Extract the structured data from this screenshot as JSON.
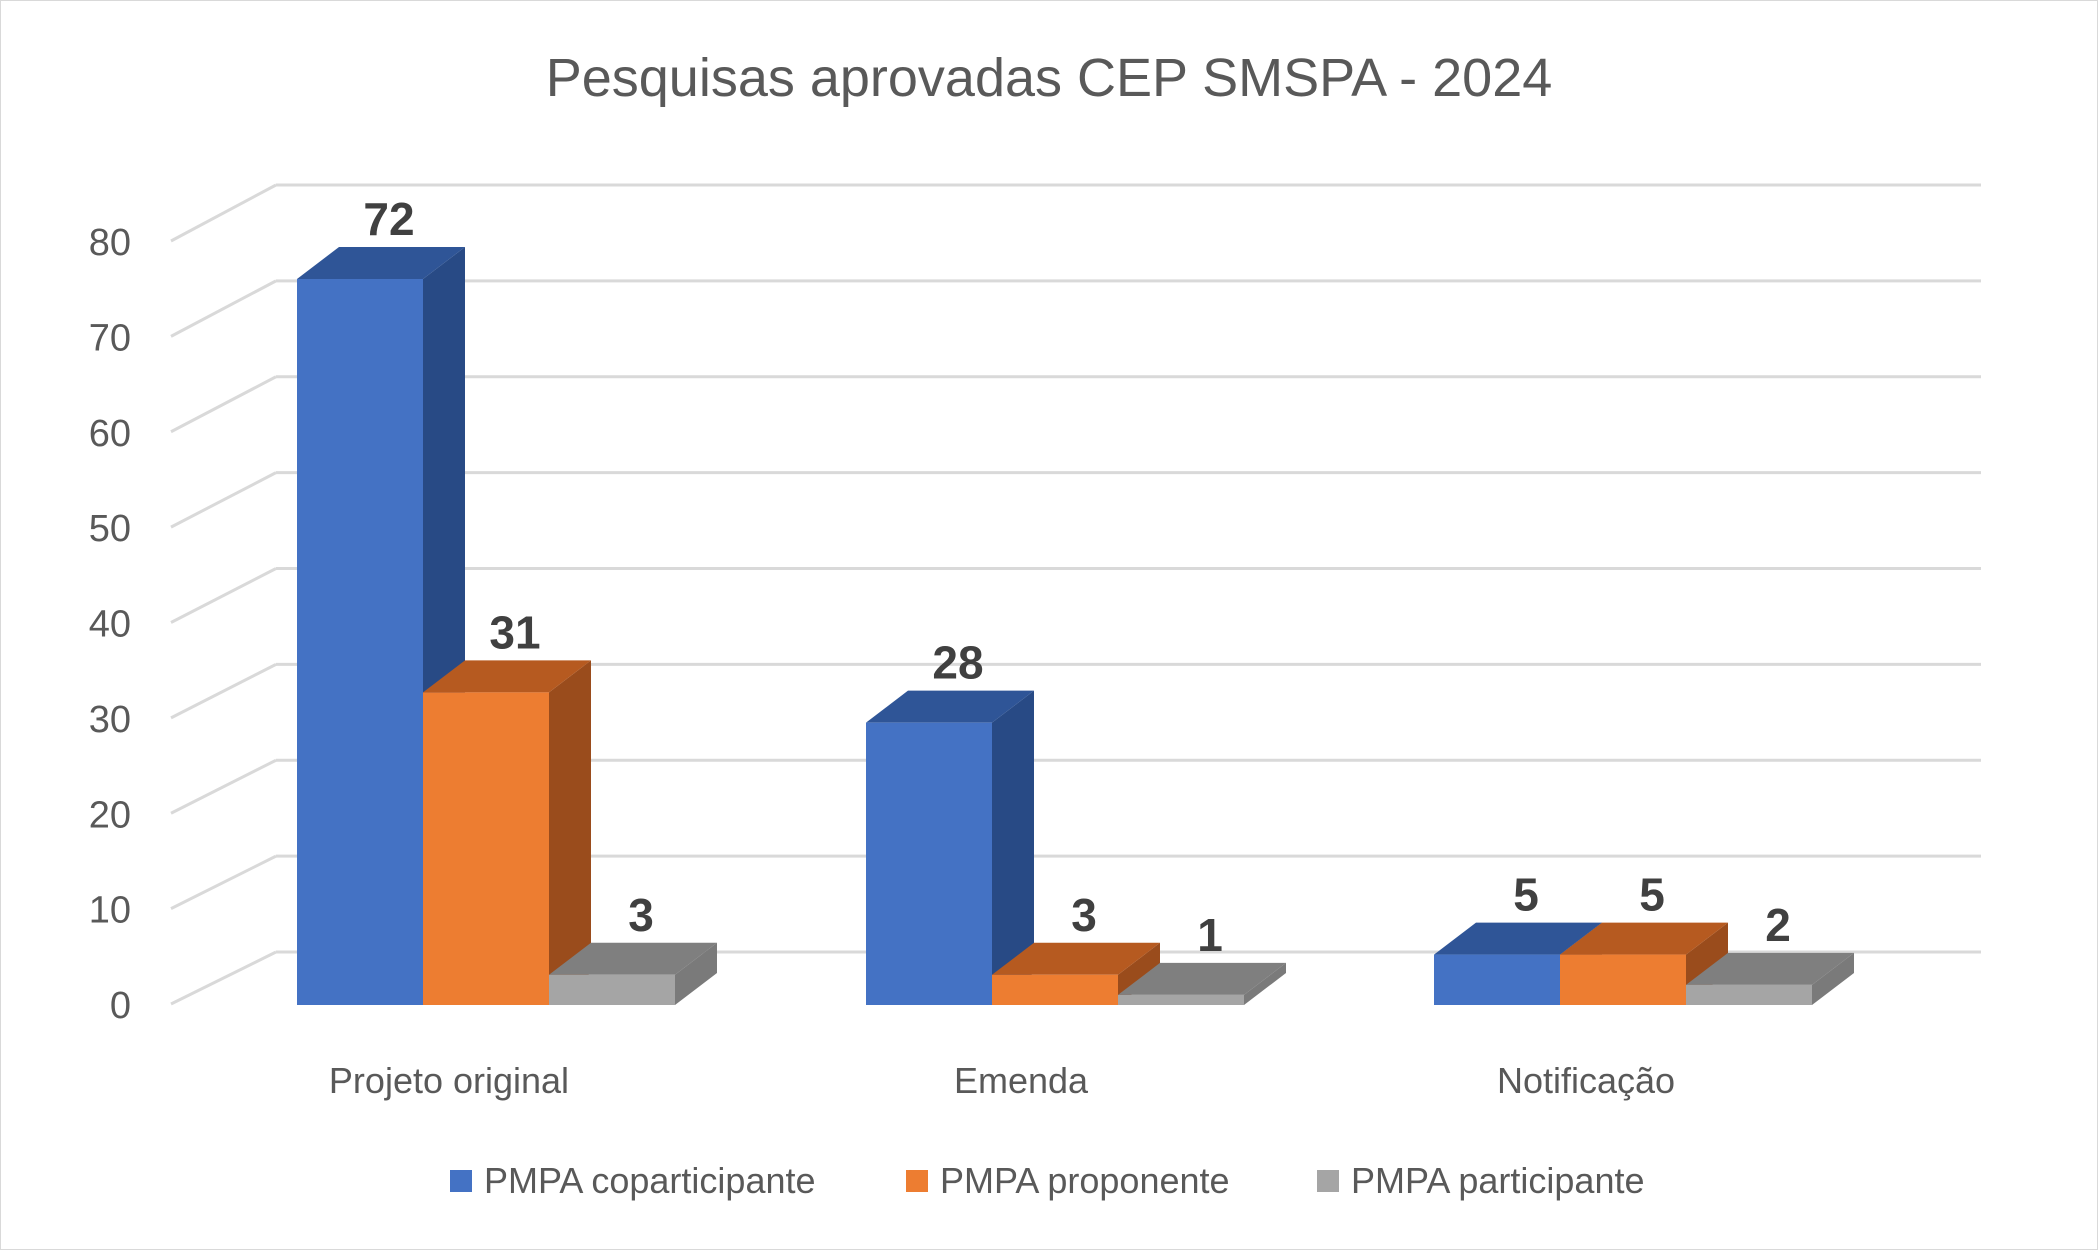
{
  "chart_data": {
    "type": "bar",
    "title": "Pesquisas aprovadas CEP SMSPA - 2024",
    "xlabel": "",
    "ylabel": "",
    "ylim": [
      0,
      80
    ],
    "yticks": [
      0,
      10,
      20,
      30,
      40,
      50,
      60,
      70,
      80
    ],
    "categories": [
      "Projeto original",
      "Emenda",
      "Notificação"
    ],
    "series": [
      {
        "name": "PMPA coparticipante",
        "values": [
          72,
          28,
          5
        ]
      },
      {
        "name": "PMPA proponente",
        "values": [
          31,
          3,
          5
        ]
      },
      {
        "name": "PMPA participante",
        "values": [
          3,
          1,
          2
        ]
      }
    ],
    "legend_position": "bottom",
    "grid": true,
    "three_d": true
  },
  "colors": {
    "series_front": [
      "#4472C4",
      "#ED7D31",
      "#A5A5A5"
    ],
    "series_top": [
      "#2F5597",
      "#B65A20",
      "#7F7F7F"
    ],
    "series_side": [
      "#284A85",
      "#9A4C1C",
      "#7A7A7A"
    ],
    "gridline": "#d9d9d9",
    "text": "#595959",
    "label": "#404040"
  }
}
